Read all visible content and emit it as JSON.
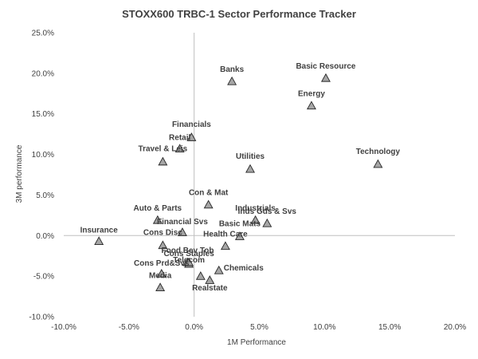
{
  "chart_data": {
    "type": "scatter",
    "title": "STOXX600 TRBC-1 Sector Performance Tracker",
    "xlabel": "1M Performance",
    "ylabel": "3M performance",
    "xlim": [
      -0.1,
      0.2
    ],
    "ylim": [
      -0.1,
      0.25
    ],
    "x_ticks": [
      -0.1,
      -0.05,
      0.0,
      0.05,
      0.1,
      0.15,
      0.2
    ],
    "y_ticks": [
      -0.1,
      -0.05,
      0.0,
      0.05,
      0.1,
      0.15,
      0.2,
      0.25
    ],
    "x_tick_labels": [
      "-10.0%",
      "-5.0%",
      "0.0%",
      "5.0%",
      "10.0%",
      "15.0%",
      "20.0%"
    ],
    "y_tick_labels": [
      "-10.0%",
      "-5.0%",
      "0.0%",
      "5.0%",
      "10.0%",
      "15.0%",
      "20.0%",
      "25.0%"
    ],
    "grid": false,
    "legend": "none",
    "marker": "triangle",
    "marker_color": "#a6a6a6",
    "points": [
      {
        "label": "Banks",
        "x": 0.029,
        "y": 0.19
      },
      {
        "label": "Basic Resource",
        "x": 0.101,
        "y": 0.194
      },
      {
        "label": "Energy",
        "x": 0.09,
        "y": 0.16
      },
      {
        "label": "Financials",
        "x": -0.002,
        "y": 0.121
      },
      {
        "label": "Retail",
        "x": -0.011,
        "y": 0.107
      },
      {
        "label": "Travel & Leis",
        "x": -0.024,
        "y": 0.091
      },
      {
        "label": "Utilities",
        "x": 0.043,
        "y": 0.082
      },
      {
        "label": "Technology",
        "x": 0.141,
        "y": 0.088
      },
      {
        "label": "Con & Mat",
        "x": 0.011,
        "y": 0.038
      },
      {
        "label": "Industrials",
        "x": 0.047,
        "y": 0.019
      },
      {
        "label": "Inds Gds & Svs",
        "x": 0.056,
        "y": 0.015
      },
      {
        "label": "Basic Mats",
        "x": 0.035,
        "y": -0.001
      },
      {
        "label": "Health Care",
        "x": 0.024,
        "y": -0.013
      },
      {
        "label": "Auto & Parts",
        "x": -0.028,
        "y": 0.019
      },
      {
        "label": "Financial Svs",
        "x": -0.009,
        "y": 0.004
      },
      {
        "label": "Cons Disc",
        "x": -0.024,
        "y": -0.012
      },
      {
        "label": "Food Bev Tob",
        "x": -0.005,
        "y": -0.033
      },
      {
        "label": "Cons Staples",
        "x": -0.004,
        "y": -0.035
      },
      {
        "label": "Telecom",
        "x": -0.004,
        "y": -0.033
      },
      {
        "label": "Cons Prd&Svs",
        "x": -0.025,
        "y": -0.047
      },
      {
        "label": "Chemicals",
        "x": 0.019,
        "y": -0.043
      },
      {
        "label": "Media",
        "x": -0.026,
        "y": -0.064
      },
      {
        "label": "Realstate",
        "x": 0.012,
        "y": -0.055
      },
      {
        "label": "Insurance",
        "x": -0.073,
        "y": -0.007
      },
      {
        "label": "",
        "x": 0.005,
        "y": -0.05
      }
    ]
  }
}
